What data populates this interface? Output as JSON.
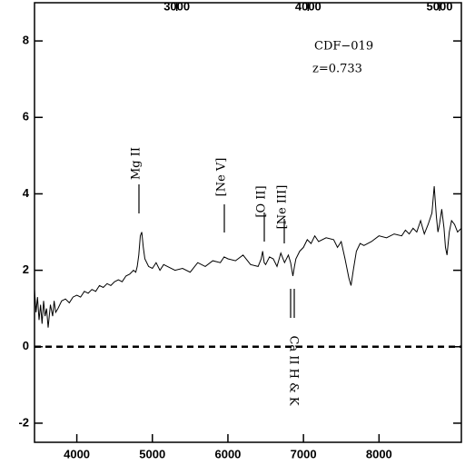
{
  "chart_data": {
    "type": "line",
    "title": "CDF−019",
    "subtitle": "z=0.733",
    "annotations": [
      "Mg II",
      "[Ne V]",
      "[O II]",
      "[Ne III]",
      "Ca II H & K"
    ],
    "x": [
      3440,
      3460,
      3480,
      3500,
      3520,
      3540,
      3560,
      3580,
      3600,
      3620,
      3650,
      3680,
      3700,
      3720,
      3750,
      3800,
      3850,
      3900,
      3950,
      4000,
      4050,
      4100,
      4150,
      4200,
      4250,
      4300,
      4350,
      4400,
      4450,
      4500,
      4550,
      4600,
      4650,
      4700,
      4750,
      4780,
      4800,
      4820,
      4840,
      4860,
      4880,
      4900,
      4950,
      5000,
      5050,
      5100,
      5150,
      5200,
      5300,
      5400,
      5500,
      5600,
      5700,
      5800,
      5900,
      5950,
      6000,
      6100,
      6200,
      6300,
      6400,
      6440,
      6460,
      6480,
      6500,
      6550,
      6600,
      6650,
      6700,
      6750,
      6800,
      6830,
      6860,
      6880,
      6900,
      6950,
      7000,
      7050,
      7100,
      7150,
      7200,
      7300,
      7400,
      7450,
      7500,
      7550,
      7600,
      7630,
      7660,
      7700,
      7750,
      7800,
      7900,
      8000,
      8100,
      8200,
      8300,
      8350,
      8400,
      8450,
      8500,
      8550,
      8600,
      8650,
      8700,
      8730,
      8760,
      8780,
      8800,
      8830,
      8860,
      8880,
      8900,
      8930,
      8960,
      9000,
      9040,
      9090
    ],
    "values": [
      1.5,
      0.9,
      1.3,
      0.7,
      1.1,
      0.6,
      1.2,
      0.8,
      1.0,
      0.5,
      1.1,
      0.8,
      1.2,
      0.9,
      1.0,
      1.2,
      1.25,
      1.15,
      1.3,
      1.35,
      1.3,
      1.45,
      1.4,
      1.5,
      1.45,
      1.6,
      1.55,
      1.65,
      1.6,
      1.7,
      1.75,
      1.7,
      1.85,
      1.9,
      2.0,
      1.95,
      2.1,
      2.4,
      2.9,
      3.0,
      2.6,
      2.3,
      2.1,
      2.05,
      2.2,
      2.0,
      2.15,
      2.1,
      2.0,
      2.05,
      1.95,
      2.2,
      2.1,
      2.25,
      2.2,
      2.35,
      2.3,
      2.25,
      2.4,
      2.15,
      2.1,
      2.3,
      2.5,
      2.2,
      2.15,
      2.35,
      2.3,
      2.1,
      2.45,
      2.2,
      2.4,
      2.2,
      1.85,
      2.1,
      2.3,
      2.5,
      2.6,
      2.8,
      2.7,
      2.9,
      2.75,
      2.85,
      2.8,
      2.6,
      2.75,
      2.3,
      1.8,
      1.6,
      2.0,
      2.5,
      2.7,
      2.65,
      2.75,
      2.9,
      2.85,
      2.95,
      2.9,
      3.05,
      2.95,
      3.1,
      3.0,
      3.3,
      2.95,
      3.2,
      3.5,
      4.2,
      3.4,
      3.0,
      3.2,
      3.6,
      3.1,
      2.6,
      2.4,
      3.0,
      3.3,
      3.2,
      3.0,
      3.1
    ],
    "color": "#000000",
    "xlim": [
      3440,
      9090
    ],
    "xticks": [
      4000,
      5000,
      6000,
      7000,
      8000
    ],
    "x2lim": [
      1917,
      5166
    ],
    "x2ticks": [
      3000,
      4000,
      5000
    ],
    "ylim": [
      -2.5,
      9
    ],
    "yticks": [
      -2,
      0,
      2,
      4,
      6,
      8
    ],
    "grid": false
  }
}
